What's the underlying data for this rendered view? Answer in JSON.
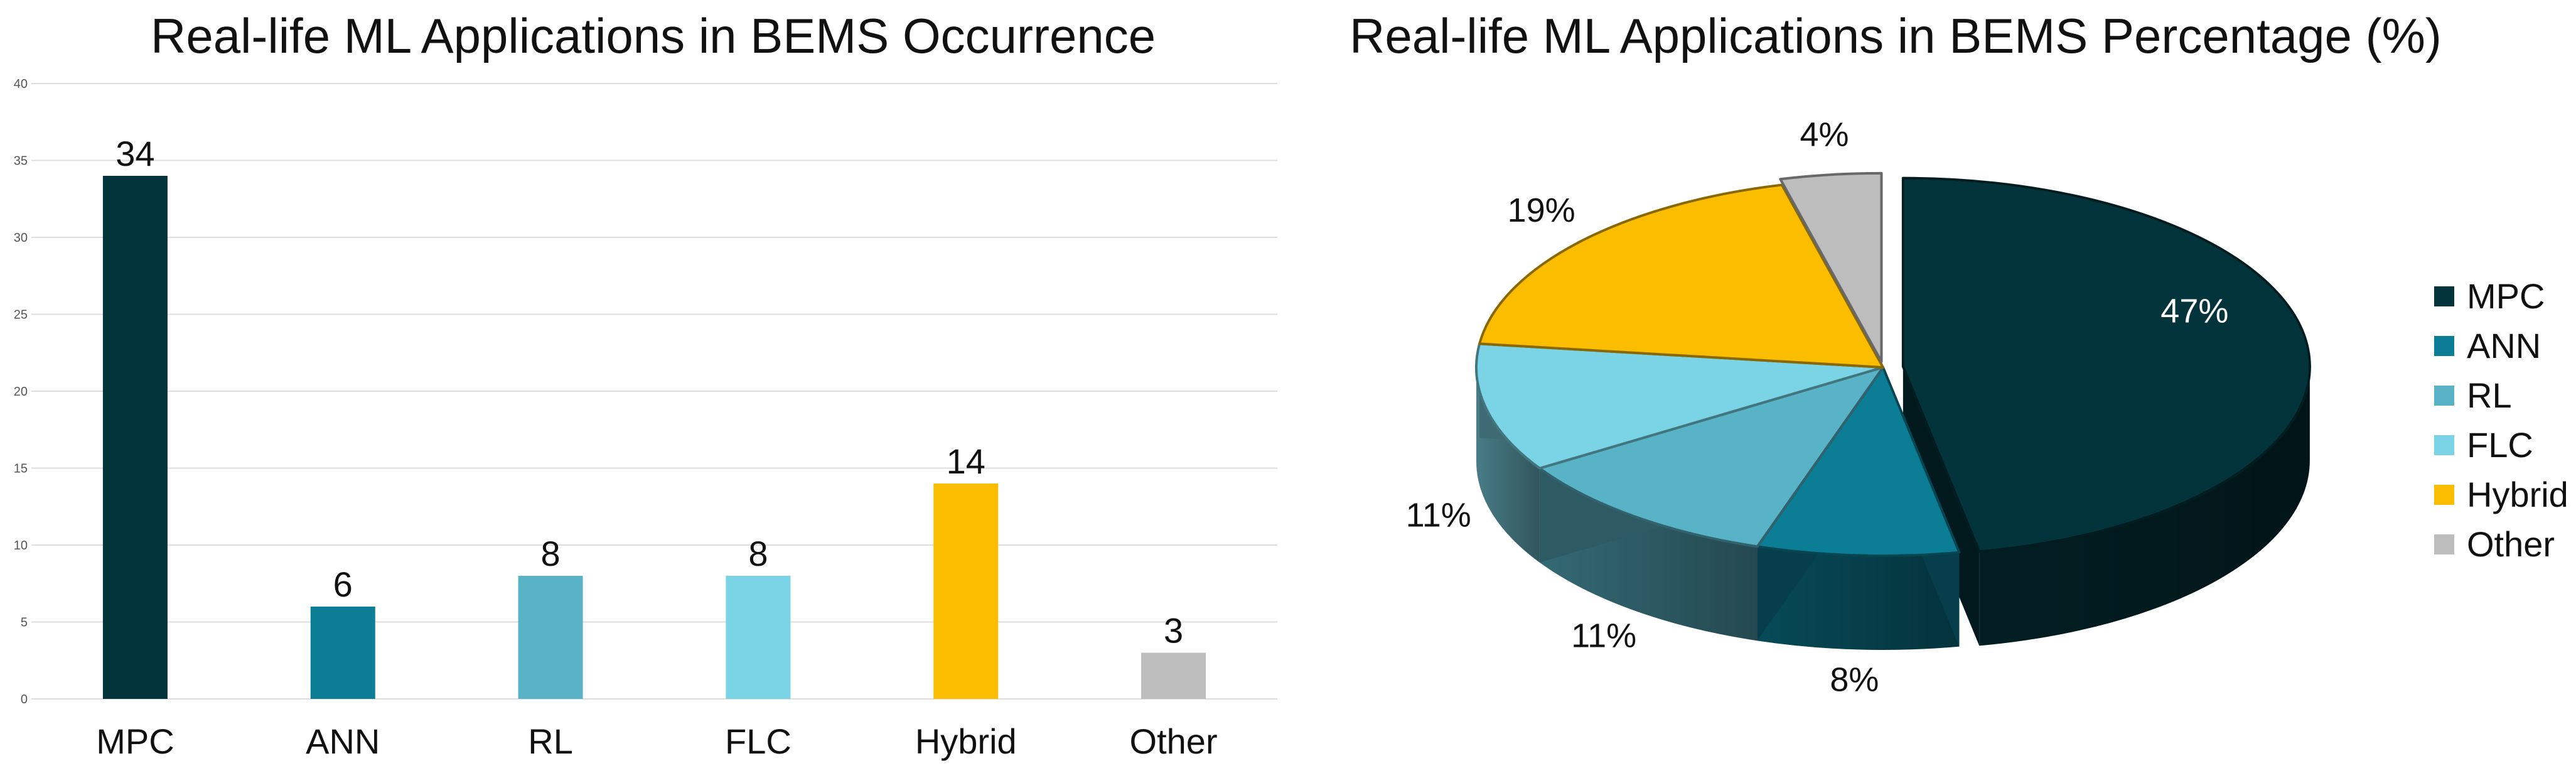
{
  "chart_data": [
    {
      "type": "bar",
      "title": "Real-life ML Applications in BEMS Occurrence",
      "categories": [
        "MPC",
        "ANN",
        "RL",
        "FLC",
        "Hybrid",
        "Other"
      ],
      "values": [
        34,
        6,
        8,
        8,
        14,
        3
      ],
      "colors": [
        "#03343B",
        "#0B7E95",
        "#59B3C6",
        "#7AD4E5",
        "#FBBD00",
        "#BDBDBD"
      ],
      "ylim": [
        0,
        40
      ],
      "yticks": [
        0,
        5,
        10,
        15,
        20,
        25,
        30,
        35,
        40
      ],
      "xlabel": "",
      "ylabel": "",
      "grid": true,
      "data_labels": true
    },
    {
      "type": "pie",
      "style": "3d-exploded",
      "title": "Real-life ML Applications in BEMS Percentage (%)",
      "labels": [
        "MPC",
        "ANN",
        "RL",
        "FLC",
        "Hybrid",
        "Other"
      ],
      "values": [
        47,
        8,
        11,
        11,
        19,
        4
      ],
      "value_labels": [
        "47%",
        "8%",
        "11%",
        "11%",
        "19%",
        "4%"
      ],
      "colors": [
        "#03343B",
        "#0B7E95",
        "#59B3C6",
        "#7AD4E5",
        "#FBBD00",
        "#BDBDBD"
      ],
      "legend_position": "right"
    }
  ]
}
